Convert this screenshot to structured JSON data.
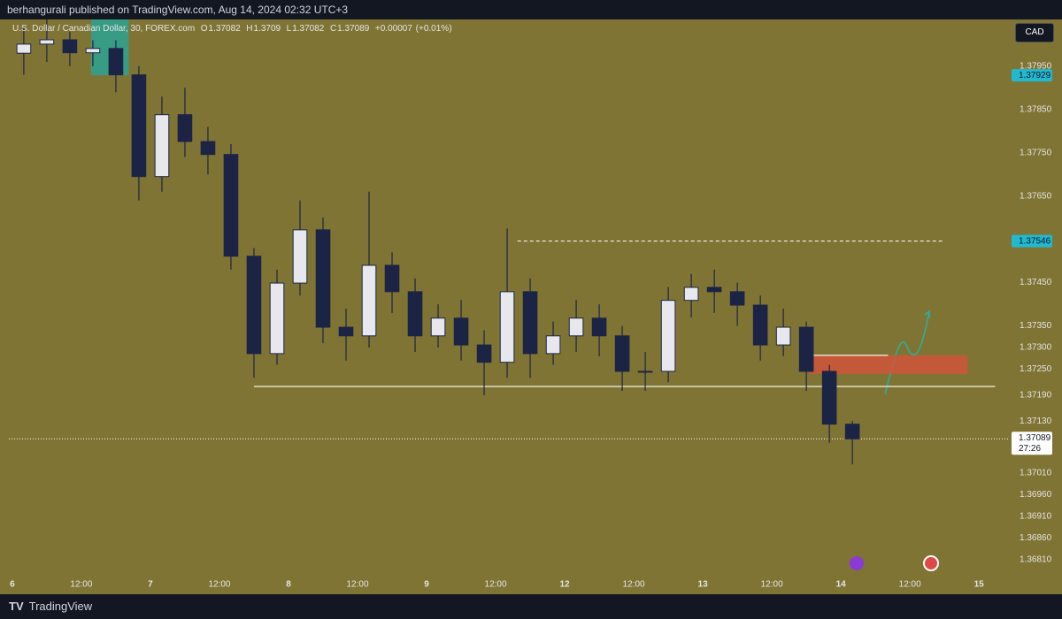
{
  "header": {
    "text": "berhangurali published on TradingView.com, Aug 14, 2024 02:32 UTC+3"
  },
  "footer": {
    "brand": "TradingView"
  },
  "currency_button": "CAD",
  "chart_data": {
    "type": "candlestick",
    "symbol": "U.S. Dollar / Canadian Dollar, 30, FOREX.com",
    "legend": {
      "o_label": "O",
      "o": 1.37082,
      "h_label": "H",
      "h": 1.3709,
      "l_label": "L",
      "l": 1.37082,
      "c_label": "C",
      "c": 1.37089,
      "change": "+0.00007",
      "change_pct": "(+0.01%)"
    },
    "x": [
      2,
      6,
      10,
      14,
      18,
      22,
      26,
      30,
      34,
      38,
      42,
      46,
      50,
      54,
      58,
      62,
      66,
      70,
      74,
      78,
      82,
      86,
      90,
      94,
      98,
      102,
      106,
      110,
      114,
      118,
      122,
      126,
      130,
      134,
      138,
      142,
      146
    ],
    "open": [
      1.3798,
      1.38001,
      1.38011,
      1.37981,
      1.37991,
      1.3793,
      1.37695,
      1.37838,
      1.37776,
      1.37746,
      1.37511,
      1.37286,
      1.37449,
      1.37572,
      1.37347,
      1.37327,
      1.3749,
      1.37429,
      1.37327,
      1.37368,
      1.37306,
      1.37266,
      1.37429,
      1.37286,
      1.37327,
      1.37368,
      1.37327,
      1.37245,
      1.37245,
      1.37409,
      1.37439,
      1.37429,
      1.37398,
      1.37306,
      1.37347,
      1.37245,
      1.37123
    ],
    "high": [
      1.3804,
      1.38058,
      1.3803,
      1.3801,
      1.3801,
      1.3795,
      1.3788,
      1.379,
      1.3781,
      1.3777,
      1.3753,
      1.3748,
      1.3764,
      1.376,
      1.3739,
      1.3766,
      1.3752,
      1.3746,
      1.374,
      1.3741,
      1.3734,
      1.37575,
      1.3746,
      1.3736,
      1.3741,
      1.374,
      1.3735,
      1.3729,
      1.3744,
      1.3747,
      1.3748,
      1.3745,
      1.3742,
      1.3739,
      1.3736,
      1.3726,
      1.3713
    ],
    "low": [
      1.3793,
      1.3796,
      1.3795,
      1.3795,
      1.3789,
      1.3764,
      1.3766,
      1.3774,
      1.377,
      1.3748,
      1.3723,
      1.3726,
      1.3742,
      1.3731,
      1.3727,
      1.373,
      1.3738,
      1.3729,
      1.373,
      1.3727,
      1.3719,
      1.3723,
      1.3723,
      1.3726,
      1.3729,
      1.3728,
      1.372,
      1.372,
      1.3722,
      1.3737,
      1.3738,
      1.3735,
      1.3727,
      1.3728,
      1.372,
      1.3708,
      1.3703
    ],
    "close": [
      1.38001,
      1.38011,
      1.37981,
      1.37991,
      1.3793,
      1.37695,
      1.37838,
      1.37776,
      1.37746,
      1.37511,
      1.37286,
      1.37449,
      1.37572,
      1.37347,
      1.37327,
      1.3749,
      1.37429,
      1.37327,
      1.37368,
      1.37306,
      1.37266,
      1.37429,
      1.37286,
      1.37327,
      1.37368,
      1.37327,
      1.37245,
      1.37245,
      1.37409,
      1.37439,
      1.37429,
      1.37398,
      1.37306,
      1.37347,
      1.37245,
      1.37123,
      1.37089
    ],
    "up_color": "#e6e8ee",
    "down_color": "#1b2445",
    "xlim": [
      -0.6,
      173.2
    ],
    "xticks": [
      {
        "value": 0,
        "label": "6"
      },
      {
        "value": 12,
        "label": "12:00"
      },
      {
        "value": 24,
        "label": "7"
      },
      {
        "value": 36,
        "label": "12:00"
      },
      {
        "value": 48,
        "label": "8"
      },
      {
        "value": 60,
        "label": "12:00"
      },
      {
        "value": 72,
        "label": "9"
      },
      {
        "value": 84,
        "label": "12:00"
      },
      {
        "value": 96,
        "label": "12"
      },
      {
        "value": 108,
        "label": "12:00"
      },
      {
        "value": 120,
        "label": "13"
      },
      {
        "value": 132,
        "label": "12:00"
      },
      {
        "value": 144,
        "label": "14"
      },
      {
        "value": 156,
        "label": "12:00"
      },
      {
        "value": 168,
        "label": "15"
      }
    ],
    "ylim": [
      1.36775,
      1.38058
    ],
    "yticks": [
      {
        "value": 1.3795,
        "label": "1.37950"
      },
      {
        "value": 1.3785,
        "label": "1.37850"
      },
      {
        "value": 1.3775,
        "label": "1.37750"
      },
      {
        "value": 1.3765,
        "label": "1.37650"
      },
      {
        "value": 1.3745,
        "label": "1.37450"
      },
      {
        "value": 1.3735,
        "label": "1.37350"
      },
      {
        "value": 1.373,
        "label": "1.37300"
      },
      {
        "value": 1.3725,
        "label": "1.37250"
      },
      {
        "value": 1.3719,
        "label": "1.37190"
      },
      {
        "value": 1.3713,
        "label": "1.37130"
      },
      {
        "value": 1.3701,
        "label": "1.37010"
      },
      {
        "value": 1.3696,
        "label": "1.36960"
      },
      {
        "value": 1.3691,
        "label": "1.36910"
      },
      {
        "value": 1.3686,
        "label": "1.36860"
      },
      {
        "value": 1.3681,
        "label": "1.36810"
      }
    ],
    "grid": false,
    "marker_prices": [
      1.37929,
      1.37546
    ],
    "current_price": 1.37089,
    "countdown": "27:26",
    "support": {
      "price": 1.3721,
      "from": 42,
      "to": 170.8
    },
    "resistance": {
      "price": 1.37546,
      "from": 87.8,
      "to": 162
    },
    "zone": {
      "top": 1.37282,
      "bottom": 1.37239,
      "from": 138.6,
      "to": 166,
      "line_to": 152.2
    },
    "box": {
      "top": 1.38058,
      "bottom": 1.37929,
      "from": 13.7,
      "to": 20.2
    }
  }
}
